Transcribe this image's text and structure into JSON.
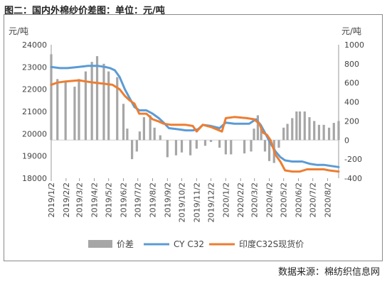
{
  "title": "图二：国内外棉纱价差图：单位：元/吨",
  "source": "数据来源：棉纺织信息网",
  "chart_data": {
    "type": "bar+line",
    "left_unit": "元/吨",
    "right_unit": "元/吨",
    "left_axis": {
      "min": 18000,
      "max": 24000,
      "step": 1000,
      "ticks": [
        "18000",
        "19000",
        "20000",
        "21000",
        "22000",
        "23000",
        "24000"
      ]
    },
    "right_axis": {
      "min": -400,
      "max": 1000,
      "step": 200,
      "ticks": [
        "-400",
        "-200",
        "0",
        "200",
        "400",
        "600",
        "800",
        "1000"
      ]
    },
    "x_range": [
      "2019-01-02",
      "2020-08-25"
    ],
    "x_ticks": [
      "2019/1/2",
      "2019/2/2",
      "2019/3/2",
      "2019/4/2",
      "2019/5/2",
      "2019/6/2",
      "2019/7/2",
      "2019/8/2",
      "2019/9/2",
      "2019/10/2",
      "2019/11/2",
      "2019/12/2",
      "2020/1/2",
      "2020/2/2",
      "2020/3/2",
      "2020/4/2",
      "2020/5/2",
      "2020/6/2",
      "2020/7/2",
      "2020/8/2"
    ],
    "legend_position": "bottom",
    "colors": {
      "spread": "#a6a6a6",
      "cy_c32": "#5b9bd5",
      "india_c32s": "#ed7d31"
    },
    "series": [
      {
        "name": "价差",
        "type": "bar",
        "axis": "right",
        "points": [
          [
            "2019-01-02",
            900
          ],
          [
            "2019-01-15",
            640
          ],
          [
            "2019-02-01",
            620
          ],
          [
            "2019-02-20",
            560
          ],
          [
            "2019-03-01",
            640
          ],
          [
            "2019-03-15",
            720
          ],
          [
            "2019-03-28",
            820
          ],
          [
            "2019-04-08",
            880
          ],
          [
            "2019-04-22",
            800
          ],
          [
            "2019-05-02",
            720
          ],
          [
            "2019-05-20",
            660
          ],
          [
            "2019-06-02",
            380
          ],
          [
            "2019-06-10",
            120
          ],
          [
            "2019-06-20",
            -200
          ],
          [
            "2019-06-30",
            -120
          ],
          [
            "2019-07-06",
            90
          ],
          [
            "2019-07-15",
            240
          ],
          [
            "2019-07-28",
            260
          ],
          [
            "2019-08-06",
            130
          ],
          [
            "2019-08-18",
            50
          ],
          [
            "2019-09-02",
            -180
          ],
          [
            "2019-09-20",
            -160
          ],
          [
            "2019-10-02",
            -130
          ],
          [
            "2019-10-20",
            -160
          ],
          [
            "2019-11-02",
            -90
          ],
          [
            "2019-11-20",
            -60
          ],
          [
            "2019-12-02",
            -20
          ],
          [
            "2019-12-20",
            -80
          ],
          [
            "2020-01-02",
            -150
          ],
          [
            "2020-01-13",
            -150
          ],
          [
            "2020-02-10",
            -140
          ],
          [
            "2020-02-24",
            -120
          ],
          [
            "2020-03-01",
            120
          ],
          [
            "2020-03-09",
            260
          ],
          [
            "2020-03-16",
            150
          ],
          [
            "2020-03-24",
            -120
          ],
          [
            "2020-04-02",
            -220
          ],
          [
            "2020-04-12",
            -240
          ],
          [
            "2020-04-22",
            -80
          ],
          [
            "2020-05-02",
            130
          ],
          [
            "2020-05-10",
            170
          ],
          [
            "2020-05-20",
            230
          ],
          [
            "2020-05-29",
            300
          ],
          [
            "2020-06-05",
            300
          ],
          [
            "2020-06-15",
            300
          ],
          [
            "2020-06-25",
            240
          ],
          [
            "2020-07-05",
            200
          ],
          [
            "2020-07-15",
            160
          ],
          [
            "2020-07-25",
            160
          ],
          [
            "2020-08-05",
            130
          ],
          [
            "2020-08-15",
            180
          ],
          [
            "2020-08-25",
            200
          ]
        ]
      },
      {
        "name": "CY C32",
        "type": "line",
        "axis": "left",
        "points": [
          [
            "2019-01-02",
            23000
          ],
          [
            "2019-01-20",
            22950
          ],
          [
            "2019-02-05",
            22950
          ],
          [
            "2019-03-01",
            23000
          ],
          [
            "2019-03-20",
            23050
          ],
          [
            "2019-04-10",
            23050
          ],
          [
            "2019-04-25",
            23000
          ],
          [
            "2019-05-05",
            22950
          ],
          [
            "2019-05-15",
            22850
          ],
          [
            "2019-05-25",
            22550
          ],
          [
            "2019-06-05",
            22000
          ],
          [
            "2019-06-15",
            21600
          ],
          [
            "2019-06-25",
            21200
          ],
          [
            "2019-07-05",
            21050
          ],
          [
            "2019-07-20",
            21050
          ],
          [
            "2019-08-02",
            20900
          ],
          [
            "2019-08-15",
            20700
          ],
          [
            "2019-08-25",
            20500
          ],
          [
            "2019-09-05",
            20250
          ],
          [
            "2019-09-25",
            20200
          ],
          [
            "2019-10-10",
            20150
          ],
          [
            "2019-10-25",
            20150
          ],
          [
            "2019-11-05",
            20200
          ],
          [
            "2019-11-15",
            20400
          ],
          [
            "2019-12-02",
            20350
          ],
          [
            "2019-12-20",
            20250
          ],
          [
            "2020-01-02",
            20500
          ],
          [
            "2020-01-20",
            20450
          ],
          [
            "2020-02-20",
            20450
          ],
          [
            "2020-03-05",
            20650
          ],
          [
            "2020-03-15",
            20400
          ],
          [
            "2020-03-25",
            20000
          ],
          [
            "2020-04-05",
            19550
          ],
          [
            "2020-04-15",
            19200
          ],
          [
            "2020-04-25",
            18950
          ],
          [
            "2020-05-05",
            18800
          ],
          [
            "2020-05-20",
            18750
          ],
          [
            "2020-06-10",
            18750
          ],
          [
            "2020-06-25",
            18650
          ],
          [
            "2020-07-10",
            18600
          ],
          [
            "2020-07-25",
            18600
          ],
          [
            "2020-08-10",
            18550
          ],
          [
            "2020-08-25",
            18500
          ]
        ]
      },
      {
        "name": "印度C32S现货价",
        "type": "line",
        "axis": "left",
        "points": [
          [
            "2019-01-02",
            22200
          ],
          [
            "2019-01-15",
            22300
          ],
          [
            "2019-02-01",
            22350
          ],
          [
            "2019-03-01",
            22400
          ],
          [
            "2019-03-15",
            22350
          ],
          [
            "2019-04-01",
            22300
          ],
          [
            "2019-04-20",
            22250
          ],
          [
            "2019-05-10",
            22200
          ],
          [
            "2019-05-25",
            22000
          ],
          [
            "2019-06-05",
            21700
          ],
          [
            "2019-06-15",
            21500
          ],
          [
            "2019-06-25",
            21350
          ],
          [
            "2019-07-05",
            20900
          ],
          [
            "2019-07-20",
            20900
          ],
          [
            "2019-08-02",
            20650
          ],
          [
            "2019-08-15",
            20550
          ],
          [
            "2019-08-25",
            20450
          ],
          [
            "2019-09-10",
            20400
          ],
          [
            "2019-09-25",
            20400
          ],
          [
            "2019-10-10",
            20400
          ],
          [
            "2019-10-25",
            20350
          ],
          [
            "2019-11-02",
            20100
          ],
          [
            "2019-11-15",
            20400
          ],
          [
            "2019-12-02",
            20300
          ],
          [
            "2019-12-25",
            20100
          ],
          [
            "2020-01-02",
            20700
          ],
          [
            "2020-01-20",
            20750
          ],
          [
            "2020-02-15",
            20700
          ],
          [
            "2020-03-01",
            20650
          ],
          [
            "2020-03-12",
            20450
          ],
          [
            "2020-03-20",
            20050
          ],
          [
            "2020-03-28",
            19950
          ],
          [
            "2020-04-05",
            19700
          ],
          [
            "2020-04-15",
            19050
          ],
          [
            "2020-04-25",
            18750
          ],
          [
            "2020-05-05",
            18350
          ],
          [
            "2020-05-20",
            18300
          ],
          [
            "2020-06-05",
            18300
          ],
          [
            "2020-06-20",
            18400
          ],
          [
            "2020-07-05",
            18400
          ],
          [
            "2020-07-25",
            18400
          ],
          [
            "2020-08-05",
            18350
          ],
          [
            "2020-08-25",
            18300
          ]
        ]
      }
    ]
  }
}
